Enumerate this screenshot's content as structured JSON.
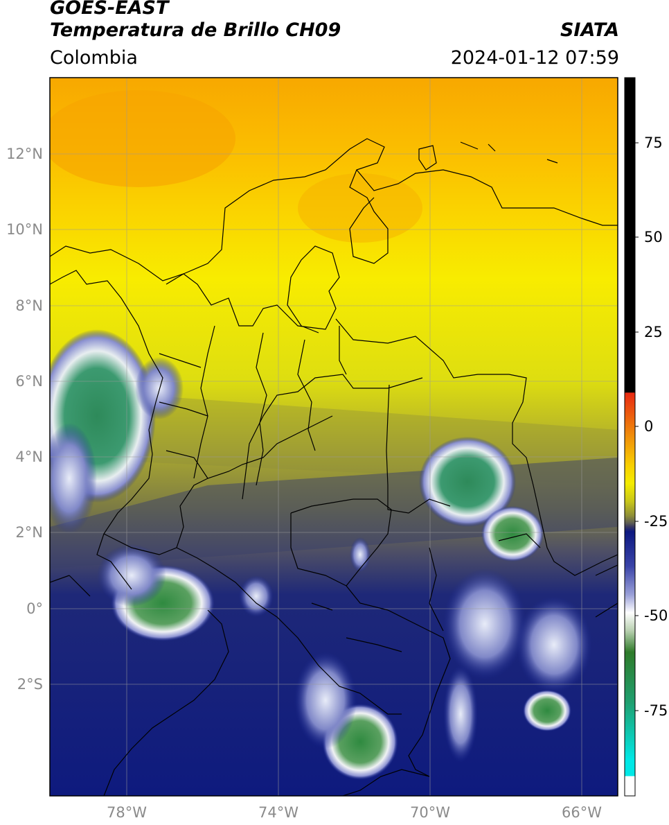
{
  "header": {
    "satellite": "GOES-EAST",
    "product": "Temperatura de Brillo CH09",
    "region": "Colombia",
    "agency": "SIATA",
    "datetime": "2024-01-12 07:59"
  },
  "map": {
    "lat_ticks": [
      "12°N",
      "10°N",
      "8°N",
      "6°N",
      "4°N",
      "2°N",
      "0°",
      "2°S"
    ],
    "lon_ticks": [
      "78°W",
      "74°W",
      "70°W",
      "66°W"
    ],
    "colorbar": {
      "ticks": [
        "75",
        "50",
        "25",
        "0",
        "-25",
        "-50",
        "-75"
      ],
      "colors": {
        "warm_hot": "#000000",
        "red": "#e82a12",
        "orange": "#f4a000",
        "yellow": "#f7f100",
        "olive": "#9c9b30",
        "gray": "#4c4c58",
        "navy": "#101c82",
        "white": "#ffffff",
        "green": "#2f7b2a",
        "teal": "#17b0a3",
        "cyan": "#00e8e6"
      }
    }
  }
}
